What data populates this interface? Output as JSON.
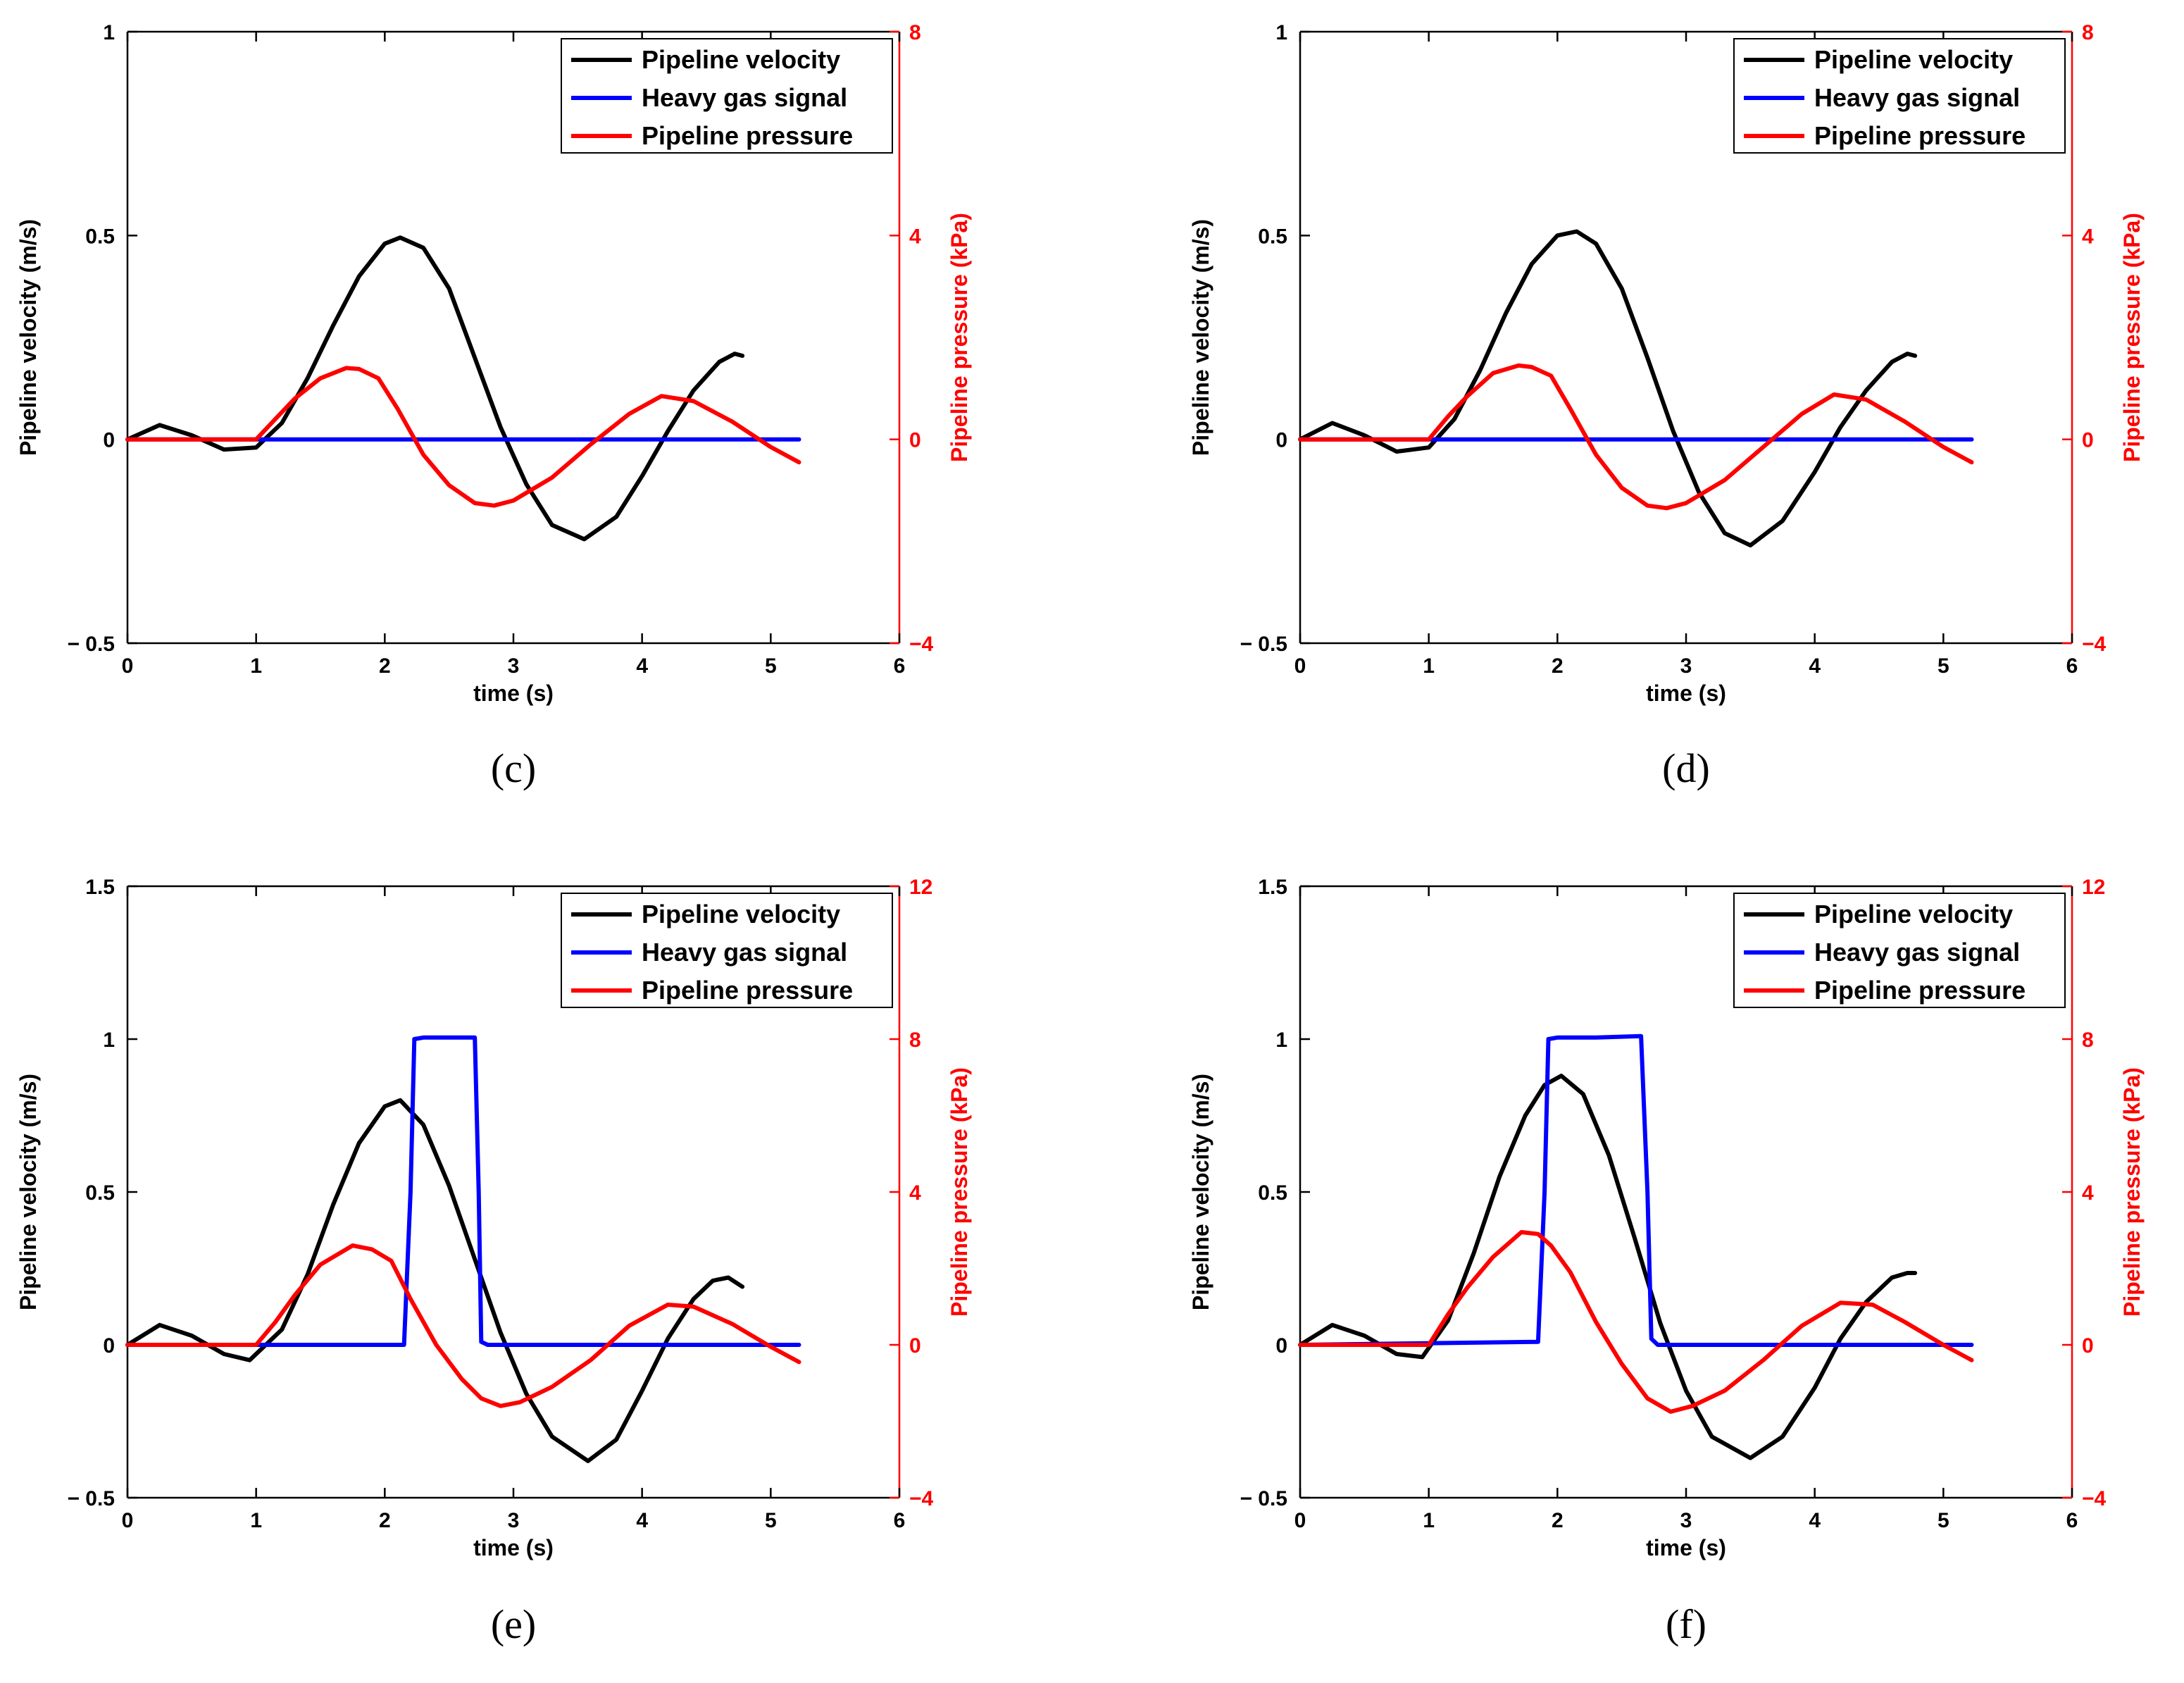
{
  "figure": {
    "panel_labels": [
      "(c)",
      "(d)",
      "(e)",
      "(f)"
    ]
  },
  "colors": {
    "velocity": "#000000",
    "heavy_gas": "#0000ff",
    "pressure": "#ff0000",
    "left_axis": "#000000",
    "right_axis": "#ff0000"
  },
  "chart_data": [
    {
      "type": "line",
      "panel": "(c)",
      "xlabel": "time (s)",
      "ylabel": "Pipeline velocity (m/s)",
      "y2label": "Pipeline pressure (kPa)",
      "xlim": [
        0,
        6
      ],
      "ylim": [
        -0.5,
        1
      ],
      "y2lim": [
        -4,
        8
      ],
      "xticks": [
        0,
        1,
        2,
        3,
        4,
        5,
        6
      ],
      "yticks": [
        -0.5,
        0,
        0.5,
        1
      ],
      "ytick_labels": [
        "− 0.5",
        "0",
        "0.5",
        "1"
      ],
      "y2ticks": [
        -4,
        0,
        4,
        8
      ],
      "y2tick_labels": [
        "−4",
        "0",
        "4",
        "8"
      ],
      "legend": [
        "Pipeline velocity",
        "Heavy gas signal",
        "Pipeline pressure"
      ],
      "legend_position": "top-right",
      "series": [
        {
          "name": "Pipeline velocity",
          "axis": "left",
          "color": "#000000",
          "x": [
            0,
            0.25,
            0.5,
            0.75,
            1.0,
            1.2,
            1.4,
            1.6,
            1.8,
            2.0,
            2.12,
            2.3,
            2.5,
            2.7,
            2.9,
            3.1,
            3.3,
            3.55,
            3.8,
            4.0,
            4.2,
            4.4,
            4.6,
            4.72,
            4.78
          ],
          "y": [
            0,
            0.035,
            0.01,
            -0.025,
            -0.02,
            0.04,
            0.15,
            0.28,
            0.4,
            0.48,
            0.495,
            0.47,
            0.37,
            0.2,
            0.03,
            -0.11,
            -0.21,
            -0.245,
            -0.19,
            -0.09,
            0.02,
            0.12,
            0.19,
            0.21,
            0.205
          ]
        },
        {
          "name": "Heavy gas signal",
          "axis": "left",
          "color": "#0000ff",
          "x": [
            0,
            5.22
          ],
          "y": [
            0,
            0
          ]
        },
        {
          "name": "Pipeline pressure",
          "axis": "right",
          "color": "#ff0000",
          "x": [
            0,
            1.0,
            1.15,
            1.3,
            1.5,
            1.7,
            1.8,
            1.95,
            2.1,
            2.3,
            2.5,
            2.7,
            2.85,
            3.0,
            3.3,
            3.6,
            3.9,
            4.15,
            4.4,
            4.7,
            5.0,
            5.22
          ],
          "y": [
            0,
            0,
            0.4,
            0.8,
            1.2,
            1.4,
            1.38,
            1.2,
            0.6,
            -0.3,
            -0.9,
            -1.25,
            -1.3,
            -1.2,
            -0.75,
            -0.1,
            0.5,
            0.85,
            0.75,
            0.35,
            -0.15,
            -0.45
          ]
        }
      ]
    },
    {
      "type": "line",
      "panel": "(d)",
      "xlabel": "time (s)",
      "ylabel": "Pipeline velocity (m/s)",
      "y2label": "Pipeline pressure (kPa)",
      "xlim": [
        0,
        6
      ],
      "ylim": [
        -0.5,
        1
      ],
      "y2lim": [
        -4,
        8
      ],
      "xticks": [
        0,
        1,
        2,
        3,
        4,
        5,
        6
      ],
      "yticks": [
        -0.5,
        0,
        0.5,
        1
      ],
      "ytick_labels": [
        "− 0.5",
        "0",
        "0.5",
        "1"
      ],
      "y2ticks": [
        -4,
        0,
        4,
        8
      ],
      "y2tick_labels": [
        "−4",
        "0",
        "4",
        "8"
      ],
      "legend": [
        "Pipeline velocity",
        "Heavy gas signal",
        "Pipeline pressure"
      ],
      "legend_position": "top-right",
      "series": [
        {
          "name": "Pipeline velocity",
          "axis": "left",
          "color": "#000000",
          "x": [
            0,
            0.25,
            0.5,
            0.75,
            1.0,
            1.2,
            1.4,
            1.6,
            1.8,
            2.0,
            2.15,
            2.3,
            2.5,
            2.7,
            2.9,
            3.1,
            3.3,
            3.5,
            3.75,
            4.0,
            4.2,
            4.4,
            4.6,
            4.72,
            4.78
          ],
          "y": [
            0,
            0.04,
            0.01,
            -0.03,
            -0.02,
            0.05,
            0.17,
            0.31,
            0.43,
            0.5,
            0.51,
            0.48,
            0.37,
            0.2,
            0.02,
            -0.13,
            -0.23,
            -0.26,
            -0.2,
            -0.08,
            0.03,
            0.12,
            0.19,
            0.21,
            0.205
          ]
        },
        {
          "name": "Heavy gas signal",
          "axis": "left",
          "color": "#0000ff",
          "x": [
            0,
            5.22
          ],
          "y": [
            0,
            0
          ]
        },
        {
          "name": "Pipeline pressure",
          "axis": "right",
          "color": "#ff0000",
          "x": [
            0,
            1.0,
            1.15,
            1.3,
            1.5,
            1.7,
            1.8,
            1.95,
            2.1,
            2.3,
            2.5,
            2.7,
            2.85,
            3.0,
            3.3,
            3.6,
            3.9,
            4.15,
            4.4,
            4.7,
            5.0,
            5.22
          ],
          "y": [
            0,
            0,
            0.45,
            0.85,
            1.3,
            1.45,
            1.42,
            1.25,
            0.6,
            -0.3,
            -0.95,
            -1.3,
            -1.35,
            -1.25,
            -0.8,
            -0.15,
            0.5,
            0.88,
            0.78,
            0.35,
            -0.15,
            -0.45
          ]
        }
      ]
    },
    {
      "type": "line",
      "panel": "(e)",
      "xlabel": "time (s)",
      "ylabel": "Pipeline velocity (m/s)",
      "y2label": "Pipeline pressure (kPa)",
      "xlim": [
        0,
        6
      ],
      "ylim": [
        -0.5,
        1.5
      ],
      "y2lim": [
        -4,
        12
      ],
      "xticks": [
        0,
        1,
        2,
        3,
        4,
        5,
        6
      ],
      "yticks": [
        -0.5,
        0,
        0.5,
        1,
        1.5
      ],
      "ytick_labels": [
        "− 0.5",
        "0",
        "0.5",
        "1",
        "1.5"
      ],
      "y2ticks": [
        -4,
        0,
        4,
        8,
        12
      ],
      "y2tick_labels": [
        "−4",
        "0",
        "4",
        "8",
        "12"
      ],
      "legend": [
        "Pipeline velocity",
        "Heavy gas signal",
        "Pipeline pressure"
      ],
      "legend_position": "top-right",
      "series": [
        {
          "name": "Pipeline velocity",
          "axis": "left",
          "color": "#000000",
          "x": [
            0,
            0.25,
            0.5,
            0.75,
            0.95,
            1.2,
            1.4,
            1.6,
            1.8,
            2.0,
            2.12,
            2.3,
            2.5,
            2.7,
            2.9,
            3.1,
            3.3,
            3.58,
            3.8,
            4.0,
            4.2,
            4.4,
            4.55,
            4.67,
            4.78
          ],
          "y": [
            0,
            0.065,
            0.03,
            -0.03,
            -0.05,
            0.05,
            0.23,
            0.46,
            0.66,
            0.78,
            0.8,
            0.72,
            0.52,
            0.28,
            0.04,
            -0.16,
            -0.3,
            -0.38,
            -0.31,
            -0.15,
            0.02,
            0.15,
            0.21,
            0.22,
            0.19
          ]
        },
        {
          "name": "Heavy gas signal",
          "axis": "left",
          "color": "#0000ff",
          "x": [
            0,
            2.15,
            2.2,
            2.23,
            2.3,
            2.5,
            2.7,
            2.73,
            2.75,
            2.8,
            5.22
          ],
          "y": [
            0,
            0,
            0.5,
            1.0,
            1.005,
            1.005,
            1.005,
            0.5,
            0.01,
            0,
            0
          ]
        },
        {
          "name": "Pipeline pressure",
          "axis": "right",
          "color": "#ff0000",
          "x": [
            0,
            1.0,
            1.15,
            1.3,
            1.5,
            1.75,
            1.9,
            2.05,
            2.2,
            2.4,
            2.6,
            2.75,
            2.9,
            3.05,
            3.3,
            3.6,
            3.9,
            4.2,
            4.4,
            4.7,
            5.0,
            5.22
          ],
          "y": [
            0,
            0,
            0.6,
            1.3,
            2.1,
            2.6,
            2.5,
            2.2,
            1.2,
            0.0,
            -0.9,
            -1.4,
            -1.6,
            -1.5,
            -1.1,
            -0.4,
            0.5,
            1.05,
            1.0,
            0.55,
            -0.05,
            -0.45
          ]
        }
      ]
    },
    {
      "type": "line",
      "panel": "(f)",
      "xlabel": "time (s)",
      "ylabel": "Pipeline velocity (m/s)",
      "y2label": "Pipeline pressure (kPa)",
      "xlim": [
        0,
        6
      ],
      "ylim": [
        -0.5,
        1.5
      ],
      "y2lim": [
        -4,
        12
      ],
      "xticks": [
        0,
        1,
        2,
        3,
        4,
        5,
        6
      ],
      "yticks": [
        -0.5,
        0,
        0.5,
        1,
        1.5
      ],
      "ytick_labels": [
        "− 0.5",
        "0",
        "0.5",
        "1",
        "1.5"
      ],
      "y2ticks": [
        -4,
        0,
        4,
        8,
        12
      ],
      "y2tick_labels": [
        "−4",
        "0",
        "4",
        "8",
        "12"
      ],
      "legend": [
        "Pipeline velocity",
        "Heavy gas signal",
        "Pipeline pressure"
      ],
      "legend_position": "top-right",
      "series": [
        {
          "name": "Pipeline velocity",
          "axis": "left",
          "color": "#000000",
          "x": [
            0,
            0.25,
            0.5,
            0.75,
            0.95,
            1.15,
            1.35,
            1.55,
            1.75,
            1.9,
            2.03,
            2.2,
            2.4,
            2.6,
            2.8,
            3.0,
            3.2,
            3.5,
            3.75,
            4.0,
            4.2,
            4.4,
            4.6,
            4.72,
            4.78
          ],
          "y": [
            0,
            0.065,
            0.03,
            -0.03,
            -0.04,
            0.08,
            0.3,
            0.55,
            0.75,
            0.85,
            0.88,
            0.82,
            0.62,
            0.35,
            0.07,
            -0.15,
            -0.3,
            -0.37,
            -0.3,
            -0.14,
            0.02,
            0.14,
            0.22,
            0.235,
            0.235
          ]
        },
        {
          "name": "Heavy gas signal",
          "axis": "left",
          "color": "#0000ff",
          "x": [
            0,
            1.85,
            1.9,
            1.93,
            2.0,
            2.3,
            2.65,
            2.7,
            2.73,
            2.78,
            5.22
          ],
          "y": [
            0,
            0.01,
            0.5,
            1.0,
            1.005,
            1.005,
            1.01,
            0.5,
            0.02,
            0,
            0
          ]
        },
        {
          "name": "Pipeline pressure",
          "axis": "right",
          "color": "#ff0000",
          "x": [
            0,
            1.0,
            1.15,
            1.3,
            1.5,
            1.72,
            1.85,
            1.95,
            2.1,
            2.3,
            2.5,
            2.7,
            2.88,
            3.05,
            3.3,
            3.6,
            3.9,
            4.2,
            4.45,
            4.7,
            5.0,
            5.22
          ],
          "y": [
            0,
            0,
            0.8,
            1.5,
            2.3,
            2.95,
            2.9,
            2.6,
            1.9,
            0.6,
            -0.5,
            -1.4,
            -1.75,
            -1.6,
            -1.2,
            -0.4,
            0.5,
            1.1,
            1.05,
            0.6,
            0.0,
            -0.4
          ]
        }
      ]
    }
  ]
}
